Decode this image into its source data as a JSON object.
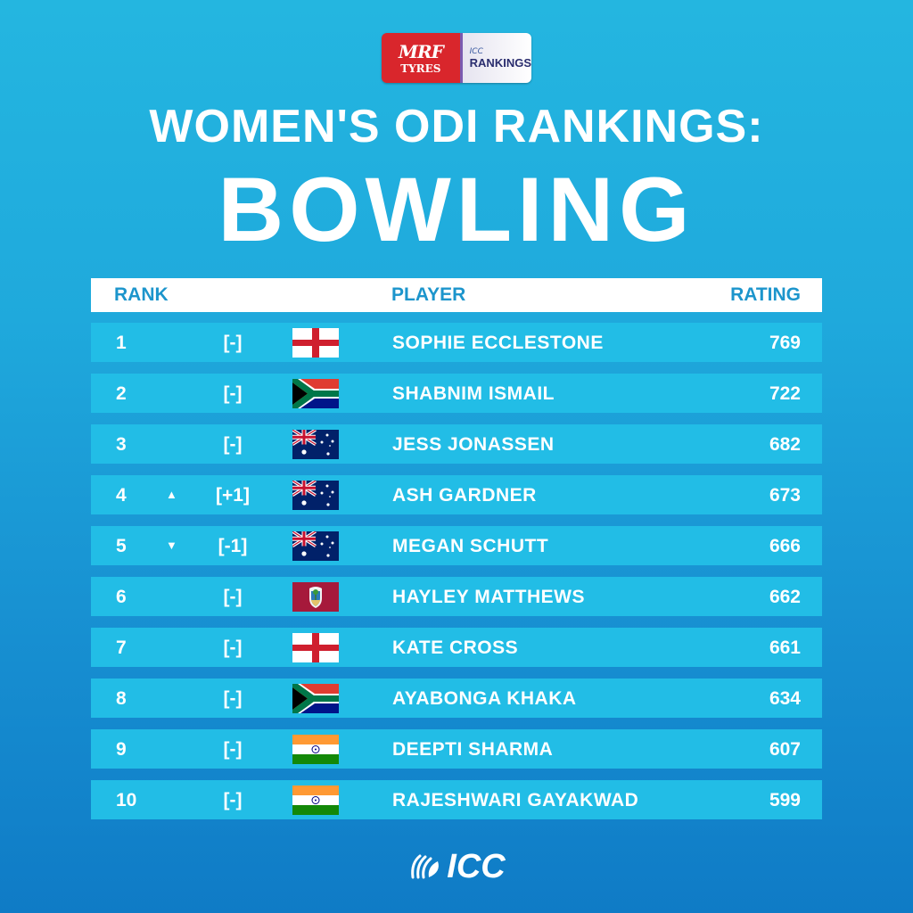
{
  "logo": {
    "sponsor_line1": "MRF",
    "sponsor_line2": "TYRES",
    "brand_small": "ICC",
    "brand_main": "RANKINGS"
  },
  "title": {
    "line1": "WOMEN'S ODI RANKINGS:",
    "line2": "BOWLING"
  },
  "table": {
    "headers": {
      "rank": "RANK",
      "player": "PLAYER",
      "rating": "RATING"
    },
    "rows": [
      {
        "rank": "1",
        "arrow": "",
        "change": "[-]",
        "flag": "england",
        "player": "SOPHIE ECCLESTONE",
        "rating": "769"
      },
      {
        "rank": "2",
        "arrow": "",
        "change": "[-]",
        "flag": "south-africa",
        "player": "SHABNIM ISMAIL",
        "rating": "722"
      },
      {
        "rank": "3",
        "arrow": "",
        "change": "[-]",
        "flag": "australia",
        "player": "JESS JONASSEN",
        "rating": "682"
      },
      {
        "rank": "4",
        "arrow": "▲",
        "change": "[+1]",
        "flag": "australia",
        "player": "ASH GARDNER",
        "rating": "673"
      },
      {
        "rank": "5",
        "arrow": "▼",
        "change": "[-1]",
        "flag": "australia",
        "player": "MEGAN SCHUTT",
        "rating": "666"
      },
      {
        "rank": "6",
        "arrow": "",
        "change": "[-]",
        "flag": "west-indies",
        "player": "HAYLEY MATTHEWS",
        "rating": "662"
      },
      {
        "rank": "7",
        "arrow": "",
        "change": "[-]",
        "flag": "england",
        "player": "KATE CROSS",
        "rating": "661"
      },
      {
        "rank": "8",
        "arrow": "",
        "change": "[-]",
        "flag": "south-africa",
        "player": "AYABONGA KHAKA",
        "rating": "634"
      },
      {
        "rank": "9",
        "arrow": "",
        "change": "[-]",
        "flag": "india",
        "player": "DEEPTI SHARMA",
        "rating": "607"
      },
      {
        "rank": "10",
        "arrow": "",
        "change": "[-]",
        "flag": "india",
        "player": "RAJESHWARI GAYAKWAD",
        "rating": "599"
      }
    ]
  },
  "footer": {
    "brand": "ICC"
  },
  "colors": {
    "bg_top": "#24b6e0",
    "bg_bottom": "#0f7bc6",
    "row_bg": "#22bde6",
    "header_bg": "#ffffff",
    "header_text": "#1c95cc",
    "mrf_red": "#d9262c"
  }
}
